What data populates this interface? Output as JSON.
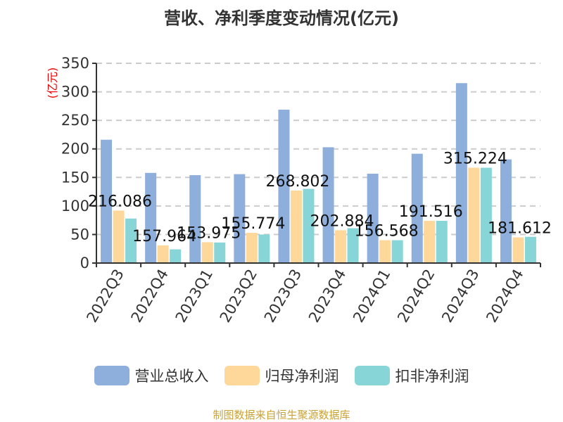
{
  "chart_data": {
    "type": "bar",
    "title": "营收、净利季度变动情况(亿元)",
    "ylabel": "(亿元)",
    "ylim": [
      0,
      350
    ],
    "yticks": [
      0,
      50,
      100,
      150,
      200,
      250,
      300,
      350
    ],
    "grid": true,
    "legend_position": "bottom",
    "categories": [
      "2022Q3",
      "2022Q4",
      "2023Q1",
      "2023Q2",
      "2023Q3",
      "2023Q4",
      "2024Q1",
      "2024Q2",
      "2024Q3",
      "2024Q4"
    ],
    "series": [
      {
        "name": "营业总收入",
        "color": "#8eaedb",
        "values": [
          216.086,
          157.964,
          153.975,
          155.774,
          268.802,
          202.884,
          156.568,
          191.516,
          315.224,
          181.612
        ],
        "labels": [
          "216.086",
          "157.964",
          "153.975",
          "155.774",
          "268.802",
          "202.884",
          "156.568",
          "191.516",
          "315.224",
          "181.612"
        ]
      },
      {
        "name": "归母净利润",
        "color": "#fdd89a",
        "values": [
          92,
          31,
          36.5,
          53,
          127,
          57.5,
          40,
          74,
          167,
          45
        ]
      },
      {
        "name": "扣非净利润",
        "color": "#88d5d8",
        "values": [
          78,
          24,
          36,
          50,
          130,
          61,
          40,
          74,
          167,
          46
        ]
      }
    ]
  },
  "footer": "制图数据来自恒生聚源数据库"
}
